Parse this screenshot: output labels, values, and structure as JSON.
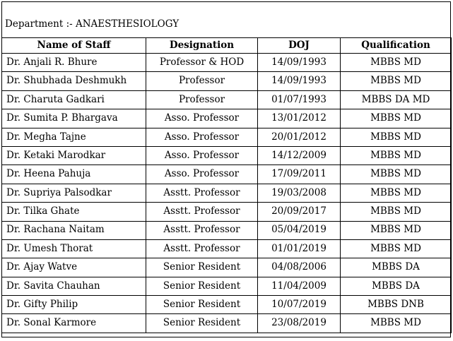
{
  "department_label": "Department :- ANAESTHESIOLOGY",
  "table": {
    "headers": [
      "Name of Staff",
      "Designation",
      "DOJ",
      "Qualification"
    ],
    "rows": [
      {
        "name": "Dr. Anjali R. Bhure",
        "designation": "Professor & HOD",
        "doj": "14/09/1993",
        "qualification": "MBBS MD"
      },
      {
        "name": "Dr. Shubhada Deshmukh",
        "designation": "Professor",
        "doj": "14/09/1993",
        "qualification": "MBBS MD"
      },
      {
        "name": "Dr. Charuta Gadkari",
        "designation": "Professor",
        "doj": "01/07/1993",
        "qualification": "MBBS  DA MD"
      },
      {
        "name": "Dr. Sumita P. Bhargava",
        "designation": "Asso. Professor",
        "doj": "13/01/2012",
        "qualification": "MBBS MD"
      },
      {
        "name": "Dr. Megha Tajne",
        "designation": "Asso. Professor",
        "doj": "20/01/2012",
        "qualification": "MBBS MD"
      },
      {
        "name": "Dr. Ketaki Marodkar",
        "designation": "Asso. Professor",
        "doj": "14/12/2009",
        "qualification": "MBBS MD"
      },
      {
        "name": "Dr. Heena Pahuja",
        "designation": "Asso. Professor",
        "doj": "17/09/2011",
        "qualification": "MBBS MD"
      },
      {
        "name": "Dr. Supriya Palsodkar",
        "designation": "Asstt.  Professor",
        "doj": "19/03/2008",
        "qualification": "MBBS MD"
      },
      {
        "name": "Dr. Tilka Ghate",
        "designation": "Asstt.  Professor",
        "doj": "20/09/2017",
        "qualification": "MBBS MD"
      },
      {
        "name": "Dr. Rachana Naitam",
        "designation": "Asstt.  Professor",
        "doj": "05/04/2019",
        "qualification": "MBBS MD"
      },
      {
        "name": "Dr. Umesh Thorat",
        "designation": "Asstt.  Professor",
        "doj": "01/01/2019",
        "qualification": "MBBS MD"
      },
      {
        "name": "Dr. Ajay Watve",
        "designation": "Senior  Resident",
        "doj": "04/08/2006",
        "qualification": "MBBS DA"
      },
      {
        "name": "Dr. Savita Chauhan",
        "designation": "Senior Resident",
        "doj": "11/04/2009",
        "qualification": "MBBS DA"
      },
      {
        "name": "Dr. Gifty Philip",
        "designation": "Senior Resident",
        "doj": "10/07/2019",
        "qualification": "MBBS DNB"
      },
      {
        "name": "Dr. Sonal Karmore",
        "designation": "Senior Resident",
        "doj": "23/08/2019",
        "qualification": "MBBS MD"
      }
    ]
  }
}
